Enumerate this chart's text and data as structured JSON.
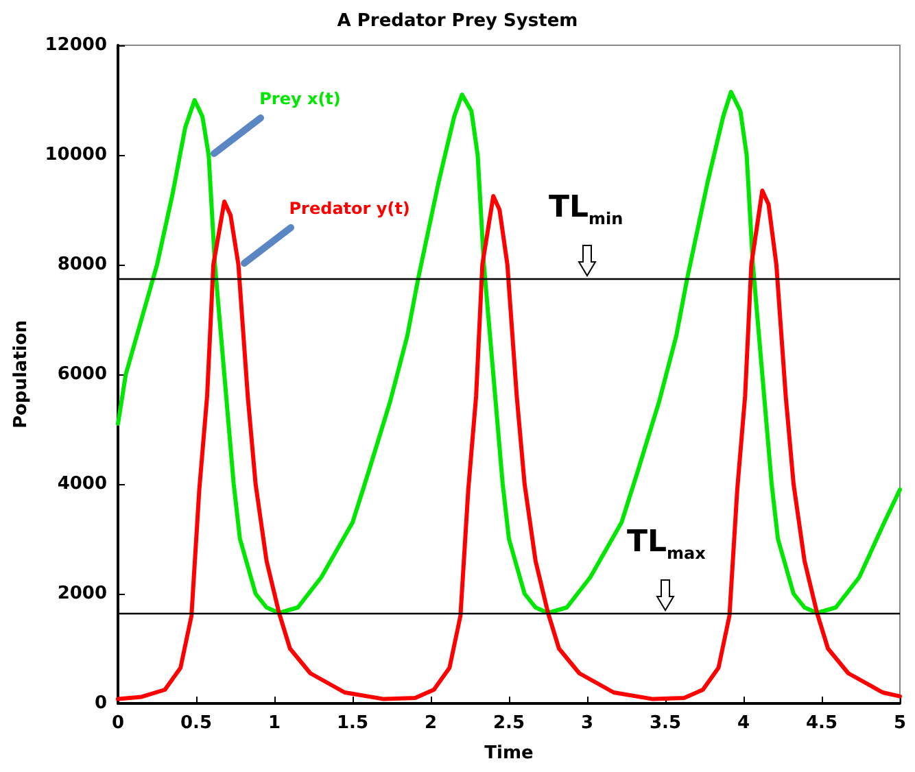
{
  "chart_data": {
    "type": "line",
    "title": "A Predator Prey System",
    "xlabel": "Time",
    "ylabel": "Population",
    "xlim": [
      0,
      5
    ],
    "xticks": [
      0,
      0.5,
      1,
      1.5,
      2,
      2.5,
      3,
      3.5,
      4,
      4.5,
      5
    ],
    "ylim": [
      0,
      12000
    ],
    "yticks": [
      0,
      2000,
      4000,
      6000,
      8000,
      10000,
      12000
    ],
    "grid": false,
    "legend": false,
    "marker": "none",
    "line_style": "solid",
    "series": [
      {
        "name": "Prey x(t)",
        "color": "#00e600",
        "x": [
          0,
          0.05,
          0.15,
          0.25,
          0.35,
          0.43,
          0.49,
          0.54,
          0.58,
          0.62,
          0.68,
          0.74,
          0.78,
          0.88,
          0.95,
          1.03,
          1.15,
          1.3,
          1.5,
          1.6,
          1.74,
          1.85,
          1.92,
          2.05,
          2.15,
          2.2,
          2.26,
          2.3,
          2.34,
          2.4,
          2.46,
          2.5,
          2.6,
          2.67,
          2.75,
          2.87,
          3.02,
          3.22,
          3.32,
          3.46,
          3.57,
          3.64,
          3.77,
          3.87,
          3.92,
          3.98,
          4.02,
          4.06,
          4.12,
          4.18,
          4.22,
          4.32,
          4.39,
          4.47,
          4.59,
          4.74,
          4.9,
          5
        ],
        "values": [
          5100,
          6000,
          7000,
          8000,
          9300,
          10500,
          11000,
          10700,
          10000,
          8000,
          6000,
          4000,
          3000,
          2000,
          1750,
          1650,
          1750,
          2300,
          3300,
          4200,
          5500,
          6700,
          7750,
          9500,
          10700,
          11100,
          10800,
          10000,
          8000,
          6000,
          4000,
          3000,
          2000,
          1750,
          1650,
          1750,
          2300,
          3300,
          4200,
          5500,
          6700,
          7750,
          9500,
          10700,
          11150,
          10800,
          10000,
          8000,
          6000,
          4000,
          3000,
          2000,
          1750,
          1650,
          1750,
          2300,
          3300,
          3900
        ]
      },
      {
        "name": "Predator y(t)",
        "color": "#ff0000",
        "x": [
          0,
          0.15,
          0.3,
          0.4,
          0.47,
          0.52,
          0.57,
          0.61,
          0.68,
          0.72,
          0.77,
          0.83,
          0.88,
          0.95,
          1.03,
          1.1,
          1.23,
          1.45,
          1.7,
          1.9,
          2.02,
          2.12,
          2.19,
          2.24,
          2.29,
          2.33,
          2.4,
          2.44,
          2.49,
          2.55,
          2.6,
          2.67,
          2.75,
          2.82,
          2.95,
          3.17,
          3.42,
          3.62,
          3.74,
          3.84,
          3.91,
          3.96,
          4.01,
          4.05,
          4.12,
          4.16,
          4.21,
          4.27,
          4.32,
          4.39,
          4.47,
          4.54,
          4.67,
          4.89,
          5
        ],
        "values": [
          80,
          120,
          250,
          650,
          1600,
          3900,
          5600,
          8000,
          9150,
          8900,
          8000,
          5600,
          4000,
          2600,
          1650,
          1000,
          550,
          200,
          80,
          100,
          250,
          650,
          1600,
          3900,
          5600,
          8000,
          9250,
          9000,
          8000,
          5600,
          4000,
          2600,
          1650,
          1000,
          550,
          200,
          80,
          100,
          250,
          650,
          1600,
          3900,
          5600,
          8000,
          9350,
          9100,
          8000,
          5600,
          4000,
          2600,
          1650,
          1000,
          550,
          200,
          130
        ]
      }
    ],
    "ref_lines": [
      {
        "axis": "y",
        "value": 7750,
        "label": "TL$_{min}$",
        "color": "#000000"
      },
      {
        "axis": "y",
        "value": 1650,
        "label": "TL$_{max}$",
        "color": "#000000"
      }
    ]
  }
}
